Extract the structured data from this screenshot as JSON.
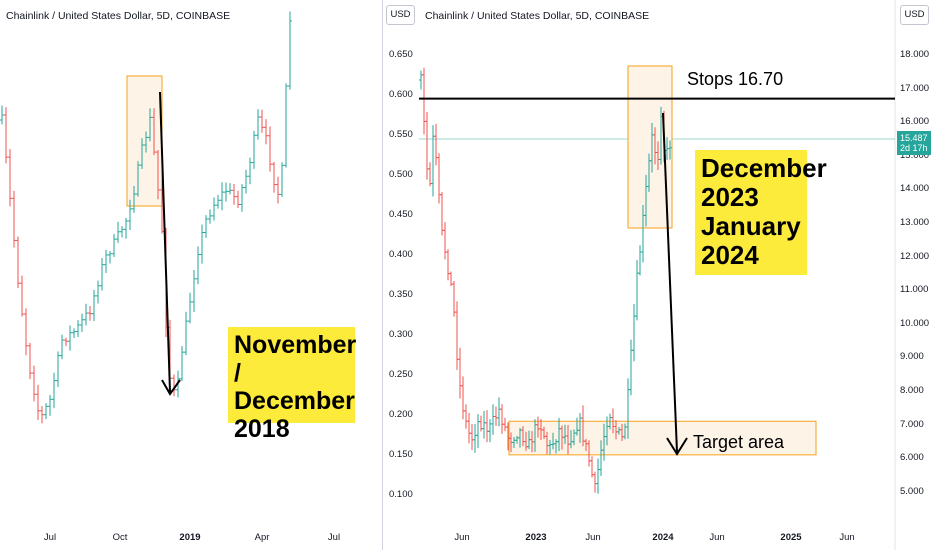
{
  "left_chart": {
    "title": "Chainlink / United States Dollar, 5D, COINBASE",
    "x_ticks": [
      "Jul",
      "Oct",
      "2019",
      "Apr",
      "Jul"
    ],
    "annotation": "November / December 2018"
  },
  "right_chart": {
    "title": "Chainlink / United States Dollar, 5D, COINBASE",
    "currency_label": "USD",
    "left_axis_ticks": [
      "0.650",
      "0.600",
      "0.550",
      "0.500",
      "0.450",
      "0.400",
      "0.350",
      "0.300",
      "0.250",
      "0.200",
      "0.150",
      "0.100"
    ],
    "right_axis_ticks": [
      "18.000",
      "17.000",
      "16.000",
      "15.000",
      "14.000",
      "13.000",
      "12.000",
      "11.000",
      "10.000",
      "9.000",
      "8.000",
      "7.000",
      "6.000",
      "5.000"
    ],
    "x_ticks": [
      "Jun",
      "2023",
      "Jun",
      "2024",
      "Jun",
      "2025",
      "Jun"
    ],
    "stops_label": "Stops 16.70",
    "annotation": "December 2023 January 2024",
    "target_label": "Target area",
    "last_price": "15.487",
    "countdown": "2d 17h"
  },
  "colors": {
    "up": "#26a69a",
    "down": "#ef5350",
    "box_border": "#f7a21b",
    "box_fill": "#fdf3e6",
    "callout": "#fdeb3c"
  },
  "chart_data": [
    {
      "type": "candlestick",
      "title": "Chainlink / United States Dollar, 5D, COINBASE",
      "x_ticks": [
        "Jul",
        "Oct",
        "2019",
        "Apr",
        "Jul"
      ],
      "trend": "rally to a local top in Oct 2018, then drop into Nov/Dec 2018, then breakout above prior highs in May 2019",
      "annotation": "November / December 2018"
    },
    {
      "type": "candlestick",
      "title": "Chainlink / United States Dollar, 5D, COINBASE",
      "y_left_ticks": [
        0.65,
        0.6,
        0.55,
        0.5,
        0.45,
        0.4,
        0.35,
        0.3,
        0.25,
        0.2,
        0.15,
        0.1
      ],
      "y_right_ticks": [
        18,
        17,
        16,
        15,
        14,
        13,
        12,
        11,
        10,
        9,
        8,
        7,
        6,
        5
      ],
      "x_ticks": [
        "Jun",
        "2023",
        "Jun",
        "2024",
        "Jun",
        "2025",
        "Jun"
      ],
      "horizontal_line": 16.7,
      "last_price": 15.487,
      "highlight_box_y": [
        13.0,
        18.2
      ],
      "target_zone_y": [
        6.1,
        7.1
      ],
      "annotation": "December 2023 January 2024"
    }
  ]
}
